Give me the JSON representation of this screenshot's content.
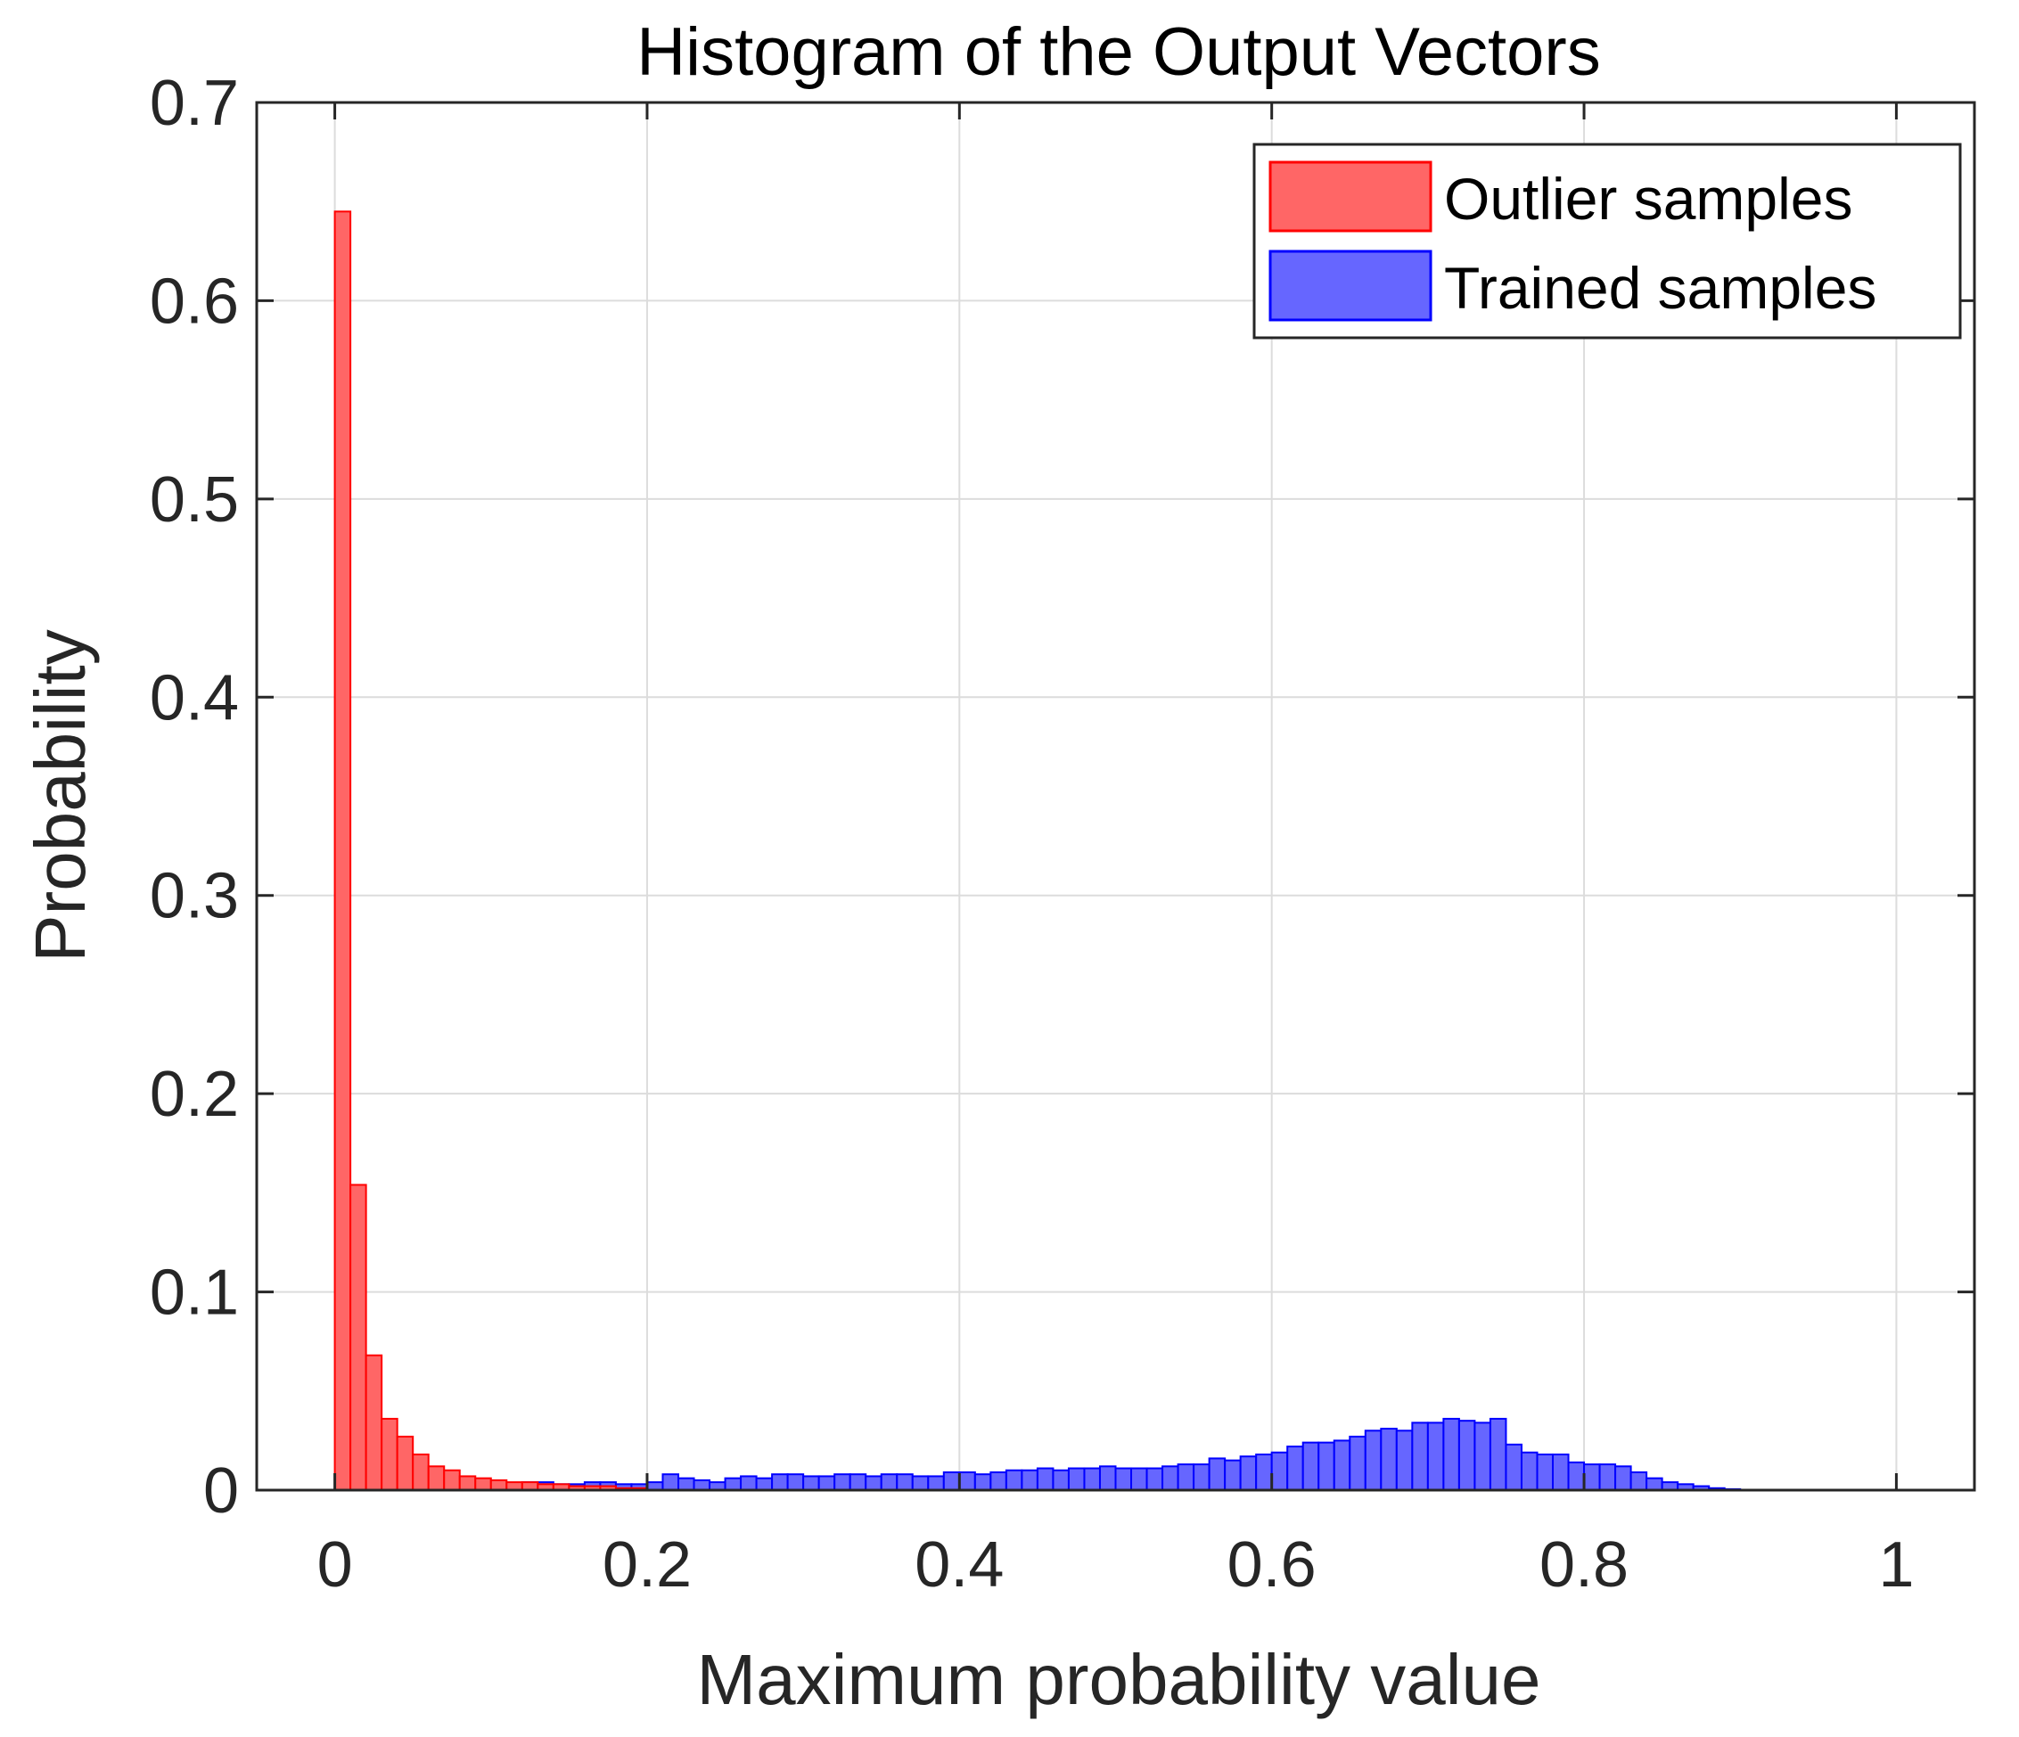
{
  "chart_data": {
    "type": "bar",
    "title": "Histogram of the Output Vectors",
    "xlabel": "Maximum probability value",
    "ylabel": "Probability",
    "xlim": [
      -0.05,
      1.05
    ],
    "ylim": [
      0,
      0.7
    ],
    "xticks": [
      0,
      0.2,
      0.4,
      0.6,
      0.8,
      1
    ],
    "xtick_labels": [
      "0",
      "0.2",
      "0.4",
      "0.6",
      "0.8",
      "1"
    ],
    "yticks": [
      0,
      0.1,
      0.2,
      0.3,
      0.4,
      0.5,
      0.6,
      0.7
    ],
    "ytick_labels": [
      "0",
      "0.1",
      "0.2",
      "0.3",
      "0.4",
      "0.5",
      "0.6",
      "0.7"
    ],
    "grid": true,
    "legend_position": "top-right",
    "bin_start": 0,
    "bin_width": 0.01,
    "series": [
      {
        "name": "Outlier samples",
        "color": "#ff0000",
        "fill": "#ff6666",
        "values": [
          0.645,
          0.154,
          0.068,
          0.036,
          0.027,
          0.018,
          0.012,
          0.01,
          0.007,
          0.006,
          0.005,
          0.004,
          0.004,
          0.003,
          0.003,
          0.002,
          0.002,
          0.002,
          0.001,
          0.001
        ]
      },
      {
        "name": "Trained samples",
        "color": "#0000ff",
        "fill": "#6666ff",
        "values": [
          0.006,
          0.006,
          0.007,
          0.006,
          0.005,
          0.005,
          0.006,
          0.005,
          0.005,
          0.004,
          0.004,
          0.003,
          0.004,
          0.004,
          0.003,
          0.003,
          0.004,
          0.004,
          0.003,
          0.003,
          0.004,
          0.008,
          0.006,
          0.005,
          0.004,
          0.006,
          0.007,
          0.006,
          0.008,
          0.008,
          0.007,
          0.007,
          0.008,
          0.008,
          0.007,
          0.008,
          0.008,
          0.007,
          0.007,
          0.009,
          0.009,
          0.008,
          0.009,
          0.01,
          0.01,
          0.011,
          0.01,
          0.011,
          0.011,
          0.012,
          0.011,
          0.011,
          0.011,
          0.012,
          0.013,
          0.013,
          0.016,
          0.015,
          0.017,
          0.018,
          0.019,
          0.022,
          0.024,
          0.024,
          0.025,
          0.027,
          0.03,
          0.031,
          0.03,
          0.034,
          0.034,
          0.036,
          0.035,
          0.034,
          0.036,
          0.023,
          0.019,
          0.018,
          0.018,
          0.014,
          0.013,
          0.013,
          0.012,
          0.009,
          0.006,
          0.004,
          0.003,
          0.002,
          0.001,
          0.0005
        ]
      }
    ]
  }
}
